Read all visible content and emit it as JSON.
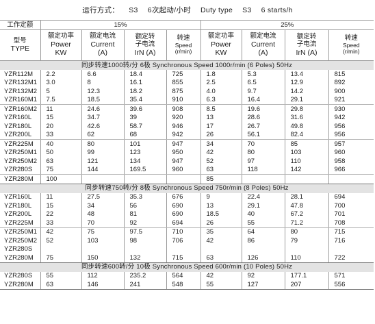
{
  "header": {
    "title": "运行方式：",
    "duty_cn_a": "S3",
    "duty_cn_b": "6次起动/小时",
    "duty_en_a": "Duty type",
    "duty_en_b": "S3",
    "duty_en_c": "6 starts/h"
  },
  "table": {
    "condition_label": "工作定额",
    "cond_a": "15%",
    "cond_b": "25%",
    "model_cn": "型号",
    "model_en": "TYPE",
    "power_cn": "额定功率",
    "power_en": "Power",
    "power_unit": "KW",
    "current_cn": "额定电流",
    "current_en": "Current",
    "current_unit": "(A)",
    "rotor_cn_1": "额定转",
    "rotor_cn_2": "子电流",
    "rotor_en": "IrN (A)",
    "speed_cn": "转速",
    "speed_en": "Speed",
    "speed_unit": "(r/min)",
    "sections": [
      {
        "title": "同步转速1000转/分 6极 Synchronous Speed 1000r/min (6 Poles) 50Hz",
        "rows": [
          [
            "YZR112M",
            "2.2",
            "6.6",
            "18.4",
            "725",
            "1.8",
            "5.3",
            "13.4",
            "815"
          ],
          [
            "YZR132M1",
            "3.0",
            "8",
            "16.1",
            "855",
            "2.5",
            "6.5",
            "12.9",
            "892"
          ],
          [
            "YZR132M2",
            "5",
            "12.3",
            "18.2",
            "875",
            "4.0",
            "9.7",
            "14.2",
            "900"
          ],
          [
            "YZR160M1",
            "7.5",
            "18.5",
            "35.4",
            "910",
            "6.3",
            "16.4",
            "29.1",
            "921"
          ],
          [
            "YZR160M2",
            "11",
            "24.6",
            "39.6",
            "908",
            "8.5",
            "19.6",
            "29.8",
            "930"
          ],
          [
            "YZR160L",
            "15",
            "34.7",
            "39",
            "920",
            "13",
            "28.6",
            "31.6",
            "942"
          ],
          [
            "YZR180L",
            "20",
            "42.6",
            "58.7",
            "946",
            "17",
            "26.7",
            "49.8",
            "956"
          ],
          [
            "YZR200L",
            "33",
            "62",
            "68",
            "942",
            "26",
            "56.1",
            "82.4",
            "956"
          ],
          [
            "YZR225M",
            "40",
            "80",
            "101",
            "947",
            "34",
            "70",
            "85",
            "957"
          ],
          [
            "YZR250M1",
            "50",
            "99",
            "123",
            "950",
            "42",
            "80",
            "103",
            "960"
          ],
          [
            "YZR250M2",
            "63",
            "121",
            "134",
            "947",
            "52",
            "97",
            "110",
            "958"
          ],
          [
            "YZR280S",
            "75",
            "144",
            "169.5",
            "960",
            "63",
            "118",
            "142",
            "966"
          ],
          [
            "YZR280M",
            "100",
            "",
            "",
            "",
            "85",
            "",
            "",
            ""
          ]
        ]
      },
      {
        "title": "同步转速750转/分 8极 Synchronous Speed 750r/min (8 Poles) 50Hz",
        "rows": [
          [
            "YZR160L",
            "11",
            "27.5",
            "35.3",
            "676",
            "9",
            "22.4",
            "28.1",
            "694"
          ],
          [
            "YZR180L",
            "15",
            "34",
            "56",
            "690",
            "13",
            "29.1",
            "47.8",
            "700"
          ],
          [
            "YZR200L",
            "22",
            "48",
            "81",
            "690",
            "18.5",
            "40",
            "67.2",
            "701"
          ],
          [
            "YZR225M",
            "33",
            "70",
            "92",
            "694",
            "26",
            "55",
            "71.2",
            "708"
          ],
          [
            "YZR250M1",
            "42",
            "75",
            "97.5",
            "710",
            "35",
            "64",
            "80",
            "715"
          ],
          [
            "YZR250M2",
            "52",
            "103",
            "98",
            "706",
            "42",
            "86",
            "79",
            "716"
          ],
          [
            "YZR280S",
            "",
            "",
            "",
            "",
            "",
            "",
            "",
            ""
          ],
          [
            "YZR280M",
            "75",
            "150",
            "132",
            "715",
            "63",
            "126",
            "110",
            "722"
          ]
        ]
      },
      {
        "title": "同步转速600转/分 10极 Synchronous Speed 600r/min (10 Poles) 50Hz",
        "rows": [
          [
            "YZR280S",
            "55",
            "112",
            "235.2",
            "564",
            "42",
            "92",
            "177.1",
            "571"
          ],
          [
            "YZR280M",
            "63",
            "146",
            "241",
            "548",
            "55",
            "127",
            "207",
            "556"
          ]
        ]
      }
    ]
  }
}
